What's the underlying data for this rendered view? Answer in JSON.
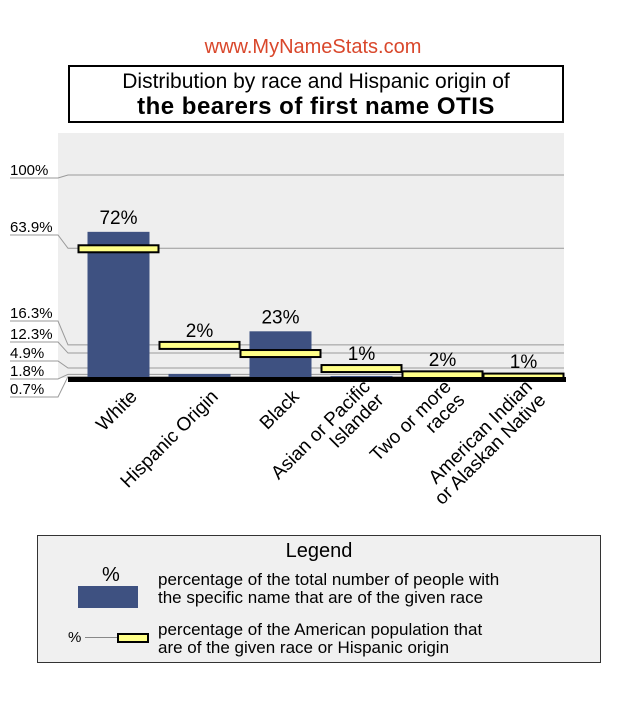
{
  "header": {
    "site": "www.MyNameStats.com",
    "title_line1": "Distribution by race and Hispanic origin of",
    "title_line2": "the bearers of first name OTIS"
  },
  "colors": {
    "bar": "#3e5181",
    "marker": "#ffff88",
    "plot_bg": "#eeeeee",
    "site": "#d9472b"
  },
  "chart_data": {
    "type": "bar",
    "title": "Distribution by race and Hispanic origin of the bearers of first name OTIS",
    "categories": [
      "White",
      "Hispanic Origin",
      "Black",
      "Asian or Pacific Islander",
      "Two or more races",
      "American Indian or Alaskan Native"
    ],
    "category_labels": [
      [
        "White"
      ],
      [
        "Hispanic Origin"
      ],
      [
        "Black"
      ],
      [
        "Asian or Pacific",
        "Islander"
      ],
      [
        "Two or more",
        "races"
      ],
      [
        "American Indian",
        "or Alaskan Native"
      ]
    ],
    "series": [
      {
        "name": "percentage of the total number of people with the specific name that are of the given race",
        "values": [
          72,
          2,
          23,
          1,
          2,
          1
        ],
        "labels": [
          "72%",
          "2%",
          "23%",
          "1%",
          "2%",
          "1%"
        ]
      },
      {
        "name": "percentage of the American population that are of the given race or Hispanic origin",
        "values": [
          63.9,
          16.3,
          12.3,
          4.9,
          1.8,
          0.7
        ]
      }
    ],
    "y_ticks": [
      "100%",
      "63.9%",
      "16.3%",
      "12.3%",
      "4.9%",
      "1.8%",
      "0.7%"
    ],
    "y_tick_values": [
      100,
      63.9,
      16.3,
      12.3,
      4.9,
      1.8,
      0.7
    ],
    "ylim": [
      0,
      100
    ],
    "grid": false,
    "legend_position": "bottom"
  },
  "legend": {
    "title": "Legend",
    "bar_symbol": "%",
    "bar_text_line1": "percentage of the total number of people with",
    "bar_text_line2": "the specific name that are of the given race",
    "marker_symbol": "%",
    "marker_text_line1": "percentage of the American population that",
    "marker_text_line2": "are of the given race or Hispanic origin"
  }
}
